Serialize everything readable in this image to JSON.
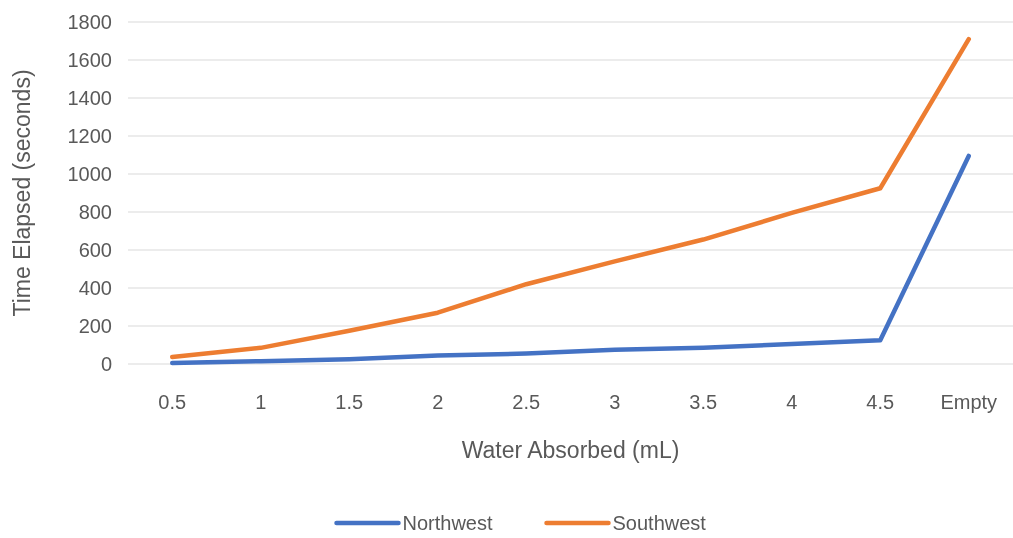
{
  "chart_data": {
    "type": "line",
    "xlabel": "Water Absorbed (mL)",
    "ylabel": "Time Elapsed (seconds)",
    "categories": [
      "0.5",
      "1",
      "1.5",
      "2",
      "2.5",
      "3",
      "3.5",
      "4",
      "4.5",
      "Empty"
    ],
    "series": [
      {
        "name": "Northwest",
        "color": "#4472c4",
        "values": [
          5,
          15,
          25,
          45,
          55,
          75,
          85,
          105,
          125,
          1095
        ]
      },
      {
        "name": "Southwest",
        "color": "#ed7d31",
        "values": [
          37,
          85,
          175,
          270,
          420,
          540,
          655,
          795,
          925,
          1710
        ]
      }
    ],
    "ylim": [
      0,
      1800
    ],
    "yticks": [
      0,
      200,
      400,
      600,
      800,
      1000,
      1200,
      1400,
      1600,
      1800
    ],
    "grid": "y",
    "legend": "bottom",
    "marker": "none",
    "line_style": "solid"
  }
}
